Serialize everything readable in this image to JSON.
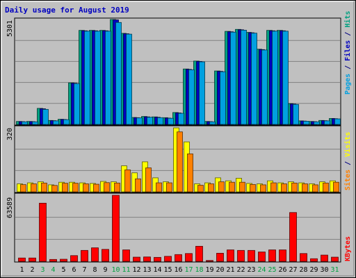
{
  "chart_data": {
    "type": "bar",
    "title": "Daily usage for August 2019",
    "days": [
      "1",
      "2",
      "3",
      "4",
      "5",
      "6",
      "7",
      "8",
      "9",
      "10",
      "11",
      "12",
      "13",
      "14",
      "15",
      "16",
      "17",
      "18",
      "19",
      "20",
      "21",
      "22",
      "23",
      "24",
      "25",
      "26",
      "27",
      "28",
      "29",
      "30",
      "31"
    ],
    "weekend_days": [
      "3",
      "4",
      "10",
      "11",
      "17",
      "18",
      "24",
      "25",
      "31"
    ],
    "panels": [
      {
        "id": "hits",
        "max_label": "5301",
        "max": 5301,
        "legend": [
          {
            "text": "Pages",
            "color": "#00a0e0"
          },
          {
            "text": " / ",
            "color": "#000080"
          },
          {
            "text": "Files",
            "color": "#0000c0"
          },
          {
            "text": " / ",
            "color": "#000080"
          },
          {
            "text": "Hits",
            "color": "#00a080"
          }
        ],
        "series": [
          {
            "name": "Hits",
            "color": "#00a080",
            "values": [
              150,
              150,
              810,
              200,
              260,
              2100,
              4750,
              4750,
              4750,
              5301,
              4600,
              350,
              400,
              380,
              340,
              600,
              2800,
              3200,
              150,
              2700,
              4700,
              4800,
              4650,
              3800,
              4750,
              4750,
              1050,
              180,
              150,
              200,
              300
            ]
          },
          {
            "name": "Files",
            "color": "#0000c0",
            "values": [
              140,
              140,
              790,
              190,
              250,
              2080,
              4730,
              4730,
              4730,
              5280,
              4580,
              340,
              380,
              360,
              320,
              580,
              2780,
              3180,
              140,
              2680,
              4680,
              4780,
              4630,
              3780,
              4730,
              4730,
              1030,
              170,
              140,
              190,
              290
            ]
          },
          {
            "name": "Pages",
            "color": "#00a0e0",
            "values": [
              130,
              130,
              760,
              180,
              240,
              2060,
              4710,
              4710,
              4710,
              5150,
              4560,
              330,
              360,
              340,
              310,
              560,
              2760,
              3160,
              130,
              2660,
              4660,
              4760,
              4610,
              3760,
              4710,
              4710,
              1010,
              160,
              130,
              180,
              280
            ]
          }
        ]
      },
      {
        "id": "visits",
        "max_label": "320",
        "max": 320,
        "legend": [
          {
            "text": "Sites",
            "color": "#ff8000"
          },
          {
            "text": " / ",
            "color": "#000080"
          },
          {
            "text": "Visits",
            "color": "#ffff00"
          }
        ],
        "series": [
          {
            "name": "Visits",
            "color": "#ffff00",
            "values": [
              40,
              45,
              50,
              35,
              48,
              48,
              45,
              42,
              52,
              50,
              130,
              95,
              150,
              70,
              50,
              320,
              250,
              40,
              45,
              70,
              55,
              68,
              42,
              40,
              55,
              45,
              50,
              45,
              40,
              50,
              55
            ]
          },
          {
            "name": "Sites",
            "color": "#ff8000",
            "values": [
              36,
              40,
              44,
              32,
              43,
              43,
              40,
              38,
              46,
              44,
              110,
              65,
              120,
              45,
              45,
              300,
              190,
              33,
              40,
              50,
              48,
              48,
              37,
              35,
              45,
              40,
              44,
              40,
              35,
              44,
              48
            ]
          }
        ]
      },
      {
        "id": "kbytes",
        "max_label": "63589",
        "max": 63589,
        "legend": [
          {
            "text": "KBytes",
            "color": "#ff0000"
          }
        ],
        "series": [
          {
            "name": "KBytes",
            "color": "#ff0000",
            "values": [
              3200,
              3200,
              56000,
              1800,
              2000,
              5500,
              10500,
              13000,
              11500,
              63589,
              11000,
              4000,
              4200,
              3800,
              4800,
              6500,
              7500,
              14500,
              800,
              7800,
              11000,
              10500,
              10500,
              9000,
              11000,
              11000,
              47000,
              7500,
              2500,
              6000,
              4000
            ]
          }
        ]
      }
    ]
  }
}
